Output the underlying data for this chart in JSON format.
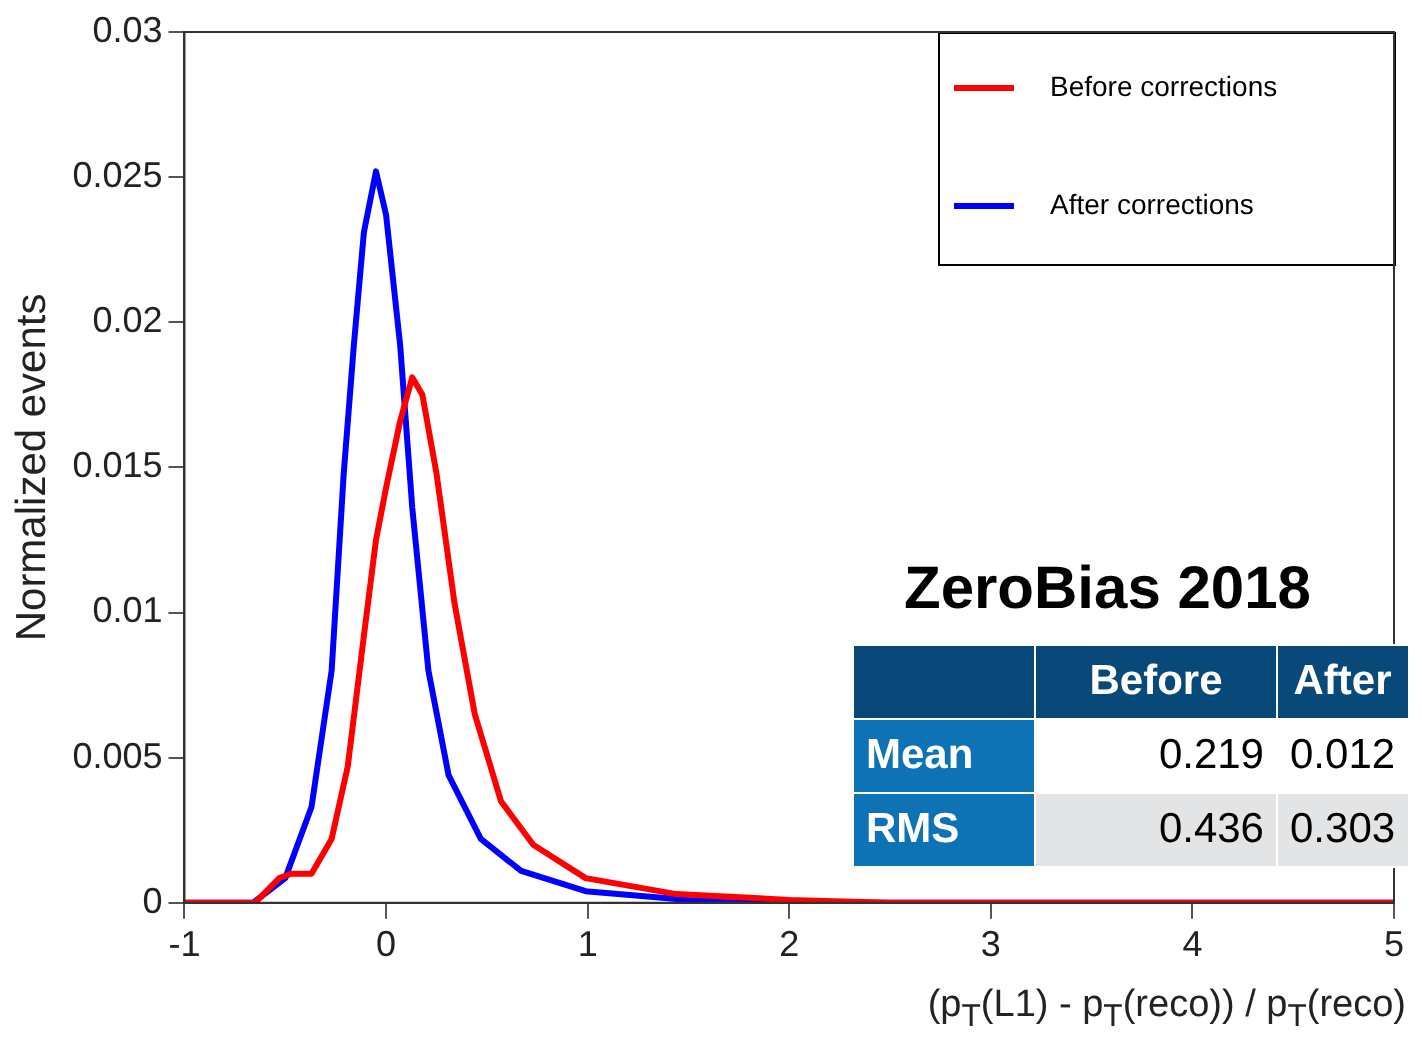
{
  "chart_data": {
    "type": "line",
    "ylabel": "Normalized events",
    "xlabel": "(p$_{T}$(L1) - p$_{T}$(reco)) / p$_{T}$(reco)",
    "xlim": [
      -1,
      5
    ],
    "xticks": [
      -1,
      0,
      1,
      2,
      3,
      4,
      5
    ],
    "ylim": [
      0,
      0.03
    ],
    "yticks": [
      0,
      0.005,
      0.01,
      0.015,
      0.02,
      0.025,
      0.03
    ],
    "grid": false,
    "legend": "top right",
    "marker": "none",
    "line_style": "solid",
    "series": [
      {
        "name": "Before corrections",
        "color": "#ff0000",
        "x": [
          -1,
          -0.65,
          -0.53,
          -0.47,
          -0.37,
          -0.27,
          -0.19,
          -0.11,
          -0.05,
          0,
          0.07,
          0.13,
          0.18,
          0.25,
          0.34,
          0.44,
          0.57,
          0.73,
          0.99,
          1.44,
          2,
          2.5,
          5
        ],
        "values": [
          0,
          0,
          0.00085,
          0.001,
          0.001,
          0.0022,
          0.0047,
          0.0092,
          0.0125,
          0.0143,
          0.0166,
          0.0181,
          0.0175,
          0.0148,
          0.0103,
          0.0065,
          0.0035,
          0.002,
          0.00085,
          0.0003,
          0.0001,
          0,
          0
        ]
      },
      {
        "name": "After corrections",
        "color": "#0000ff",
        "x": [
          -1,
          -0.66,
          -0.5,
          -0.37,
          -0.27,
          -0.21,
          -0.16,
          -0.11,
          -0.05,
          0,
          0.07,
          0.13,
          0.21,
          0.31,
          0.47,
          0.67,
          0.99,
          1.5,
          2,
          5
        ],
        "values": [
          0,
          0,
          0.00085,
          0.0033,
          0.008,
          0.0148,
          0.0192,
          0.0231,
          0.0252,
          0.0237,
          0.0192,
          0.0136,
          0.008,
          0.0044,
          0.0022,
          0.0011,
          0.0004,
          0.0001,
          0,
          0
        ]
      }
    ],
    "annotations": [
      "ZeroBias 2018",
      "Before",
      "After",
      "Mean",
      "0.219",
      "0.012",
      "RMS",
      "0.436",
      "0.303"
    ]
  }
}
